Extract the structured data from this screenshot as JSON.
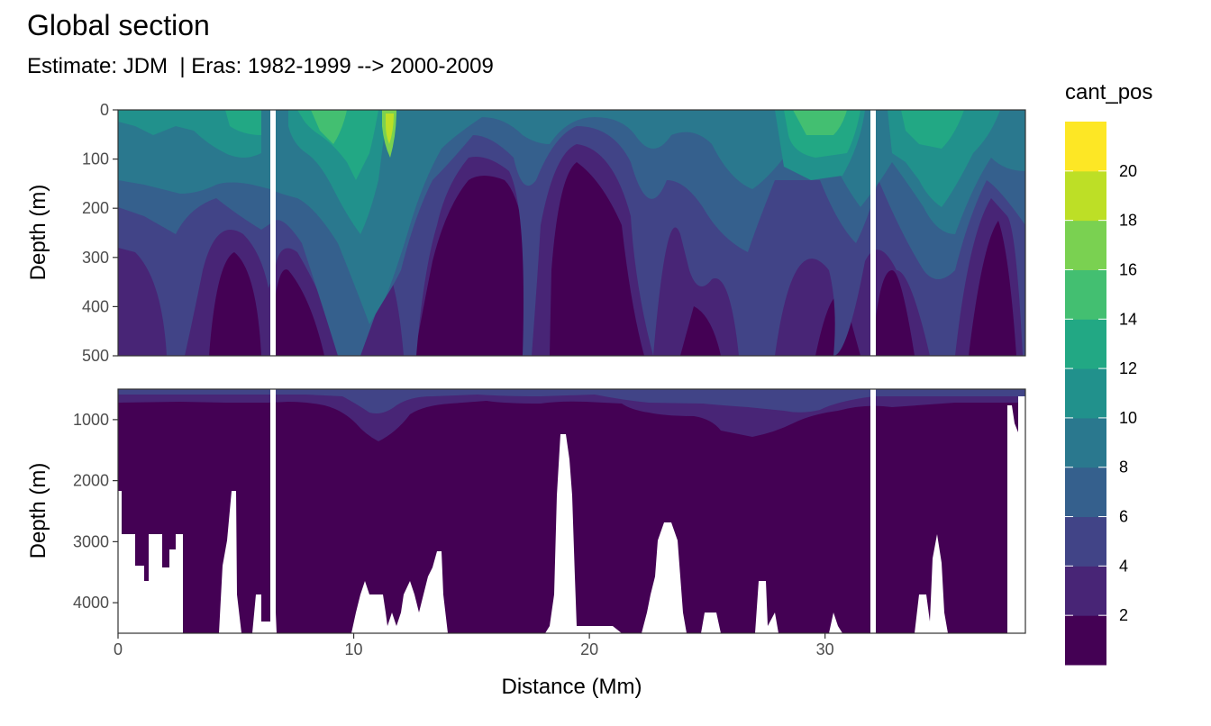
{
  "title": "Global section",
  "subtitle": "Estimate: JDM  | Eras: 1982-1999 --> 2000-2009",
  "chart_data": {
    "type": "heatmap",
    "xlabel": "Distance (Mm)",
    "ylabel": "Depth (m)",
    "xlim": [
      0,
      38.5
    ],
    "x_ticks": [
      "0",
      "10",
      "20",
      "30"
    ],
    "panels": [
      {
        "name": "upper",
        "ylim": [
          0,
          500
        ],
        "y_ticks": [
          "0",
          "100",
          "200",
          "300",
          "400",
          "500"
        ]
      },
      {
        "name": "lower",
        "ylim": [
          500,
          4500
        ],
        "y_ticks": [
          "1000",
          "2000",
          "3000",
          "4000"
        ]
      }
    ],
    "legend": {
      "title": "cant_pos",
      "position": "right",
      "labels": [
        "2",
        "4",
        "6",
        "8",
        "10",
        "12",
        "14",
        "16",
        "18",
        "20"
      ],
      "breaks": [
        0,
        2,
        4,
        6,
        8,
        10,
        12,
        14,
        16,
        18,
        20,
        22
      ],
      "colors": [
        "#440154",
        "#482576",
        "#414487",
        "#35608d",
        "#2a788e",
        "#21918c",
        "#22a884",
        "#43bf71",
        "#7ad151",
        "#bddf26",
        "#fde725"
      ]
    },
    "missing_columns_x": [
      6.6,
      32.2
    ]
  }
}
